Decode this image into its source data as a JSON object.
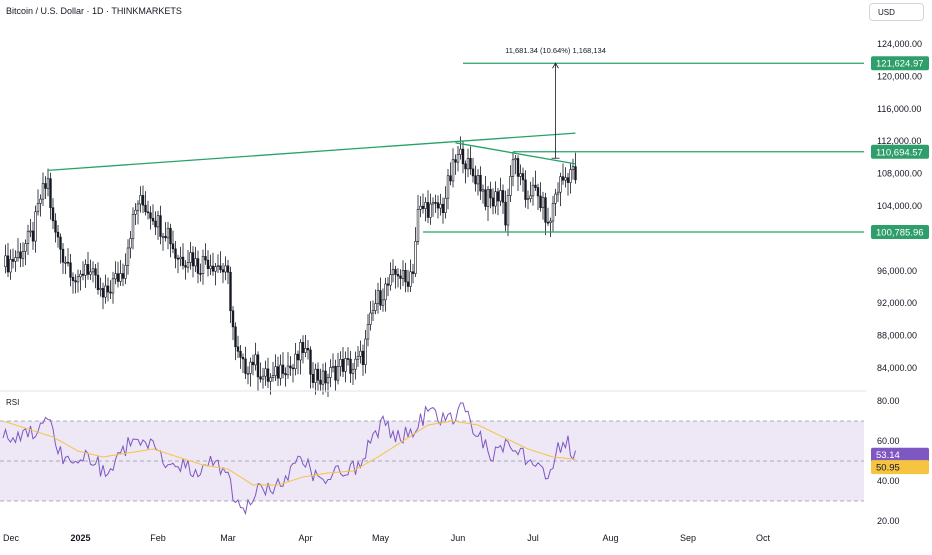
{
  "header": {
    "symbol_title": "Bitcoin / U.S. Dollar · 1D · THINKMARKETS",
    "currency_label": "USD"
  },
  "colors": {
    "trendline": "#26a269",
    "candle_up": "#ffffff",
    "candle_down": "#131722",
    "rsi_line": "#7e57c2",
    "rsi_ma": "#f5c542",
    "rsi_band": "#ede7f6",
    "price_label_bg": "#2e9e6b",
    "rsi_label_bg": "#7e57c2",
    "rsi_ma_label_bg": "#f5c542"
  },
  "chart_data": [
    {
      "type": "candlestick",
      "title": "Bitcoin / U.S. Dollar · 1D · THINKMARKETS",
      "y_axis_ticks": [
        "124,000.00",
        "120,000.00",
        "116,000.00",
        "112,000.00",
        "108,000.00",
        "104,000.00",
        "96,000.00",
        "92,000.00",
        "88,000.00",
        "84,000.00"
      ],
      "y_tick_values": [
        124000,
        120000,
        116000,
        112000,
        108000,
        104000,
        96000,
        92000,
        88000,
        84000
      ],
      "ylim": [
        81800,
        125500
      ],
      "x_axis_ticks": [
        "Dec",
        "2025",
        "Feb",
        "Mar",
        "Apr",
        "May",
        "Jun",
        "Jul",
        "Aug",
        "Sep",
        "Oct"
      ],
      "x_tick_days": [
        0,
        31,
        62,
        90,
        121,
        151,
        182,
        212,
        243,
        274,
        304
      ],
      "grid": false,
      "price_labels": [
        {
          "text": "121,624.97",
          "value": 121624.97
        },
        {
          "text": "110,694.57",
          "value": 110694.57
        },
        {
          "text": "100,785.96",
          "value": 100785.96
        }
      ],
      "measure": {
        "text": "11,681.34 (10.64%) 1,168,134",
        "from_value": 109900,
        "to_value": 121624.97,
        "day": 221
      },
      "close_path": [
        {
          "day": 0,
          "close": 96500
        },
        {
          "day": 6,
          "close": 98000
        },
        {
          "day": 12,
          "close": 100500
        },
        {
          "day": 15,
          "close": 105000
        },
        {
          "day": 18,
          "close": 107000
        },
        {
          "day": 20,
          "close": 101500
        },
        {
          "day": 24,
          "close": 98000
        },
        {
          "day": 27,
          "close": 96500
        },
        {
          "day": 30,
          "close": 94000
        },
        {
          "day": 33,
          "close": 97000
        },
        {
          "day": 36,
          "close": 95000
        },
        {
          "day": 40,
          "close": 92500
        },
        {
          "day": 44,
          "close": 94500
        },
        {
          "day": 48,
          "close": 96000
        },
        {
          "day": 51,
          "close": 101000
        },
        {
          "day": 54,
          "close": 104500
        },
        {
          "day": 57,
          "close": 104000
        },
        {
          "day": 60,
          "close": 103000
        },
        {
          "day": 63,
          "close": 101500
        },
        {
          "day": 66,
          "close": 101000
        },
        {
          "day": 69,
          "close": 98000
        },
        {
          "day": 72,
          "close": 97500
        },
        {
          "day": 75,
          "close": 98000
        },
        {
          "day": 78,
          "close": 96500
        },
        {
          "day": 81,
          "close": 97500
        },
        {
          "day": 84,
          "close": 97000
        },
        {
          "day": 87,
          "close": 96500
        },
        {
          "day": 90,
          "close": 95000
        },
        {
          "day": 93,
          "close": 86000
        },
        {
          "day": 96,
          "close": 84000
        },
        {
          "day": 100,
          "close": 85000
        },
        {
          "day": 104,
          "close": 83000
        },
        {
          "day": 108,
          "close": 82500
        },
        {
          "day": 112,
          "close": 84500
        },
        {
          "day": 116,
          "close": 84000
        },
        {
          "day": 120,
          "close": 86500
        },
        {
          "day": 124,
          "close": 83500
        },
        {
          "day": 128,
          "close": 82500
        },
        {
          "day": 132,
          "close": 83500
        },
        {
          "day": 136,
          "close": 84500
        },
        {
          "day": 140,
          "close": 84000
        },
        {
          "day": 144,
          "close": 85500
        },
        {
          "day": 146,
          "close": 88500
        },
        {
          "day": 149,
          "close": 92000
        },
        {
          "day": 152,
          "close": 93500
        },
        {
          "day": 155,
          "close": 94500
        },
        {
          "day": 158,
          "close": 96000
        },
        {
          "day": 161,
          "close": 94500
        },
        {
          "day": 164,
          "close": 96500
        },
        {
          "day": 166,
          "close": 103000
        },
        {
          "day": 169,
          "close": 104000
        },
        {
          "day": 172,
          "close": 103500
        },
        {
          "day": 176,
          "close": 104000
        },
        {
          "day": 178,
          "close": 106500
        },
        {
          "day": 181,
          "close": 109500
        },
        {
          "day": 184,
          "close": 110500
        },
        {
          "day": 187,
          "close": 108000
        },
        {
          "day": 190,
          "close": 107500
        },
        {
          "day": 193,
          "close": 105000
        },
        {
          "day": 196,
          "close": 104500
        },
        {
          "day": 199,
          "close": 106000
        },
        {
          "day": 201,
          "close": 102500
        },
        {
          "day": 203,
          "close": 108000
        },
        {
          "day": 205,
          "close": 109500
        },
        {
          "day": 207,
          "close": 107000
        },
        {
          "day": 209,
          "close": 105000
        },
        {
          "day": 211,
          "close": 106000
        },
        {
          "day": 213,
          "close": 105500
        },
        {
          "day": 215,
          "close": 104500
        },
        {
          "day": 217,
          "close": 103000
        },
        {
          "day": 218,
          "close": 101000
        },
        {
          "day": 219,
          "close": 102500
        },
        {
          "day": 221,
          "close": 105500
        },
        {
          "day": 223,
          "close": 107000
        },
        {
          "day": 225,
          "close": 107500
        },
        {
          "day": 227,
          "close": 108500
        },
        {
          "day": 229,
          "close": 107500
        }
      ],
      "annotations": {
        "upper_trendline": [
          {
            "day": 18,
            "value": 108400
          },
          {
            "day": 229,
            "value": 113000
          }
        ],
        "wedge_upper": [
          {
            "day": 181,
            "value": 111800
          },
          {
            "day": 229,
            "value": 109200
          }
        ],
        "resistance_right": {
          "start_day": 204,
          "value": 110694.57
        },
        "support": {
          "start_day": 168,
          "value": 100785.96
        },
        "target": {
          "start_day": 184,
          "value": 121624.97
        }
      }
    },
    {
      "type": "line",
      "title": "RSI",
      "y_axis_ticks": [
        "80.00",
        "60.00",
        "40.00",
        "20.00"
      ],
      "y_tick_values": [
        80,
        60,
        40,
        20
      ],
      "ylim": [
        18,
        82
      ],
      "band": [
        30,
        70
      ],
      "midline": 50,
      "value_labels": [
        {
          "text": "53.14",
          "value": 53.14
        },
        {
          "text": "50.95",
          "value": 50.95
        }
      ],
      "series": [
        {
          "role": "rsi",
          "points": [
            {
              "day": 0,
              "value": 66
            },
            {
              "day": 6,
              "value": 60
            },
            {
              "day": 12,
              "value": 64
            },
            {
              "day": 18,
              "value": 70
            },
            {
              "day": 22,
              "value": 55
            },
            {
              "day": 28,
              "value": 48
            },
            {
              "day": 34,
              "value": 54
            },
            {
              "day": 40,
              "value": 45
            },
            {
              "day": 46,
              "value": 52
            },
            {
              "day": 54,
              "value": 63
            },
            {
              "day": 60,
              "value": 56
            },
            {
              "day": 66,
              "value": 50
            },
            {
              "day": 72,
              "value": 48
            },
            {
              "day": 78,
              "value": 44
            },
            {
              "day": 84,
              "value": 50
            },
            {
              "day": 90,
              "value": 45
            },
            {
              "day": 93,
              "value": 28
            },
            {
              "day": 96,
              "value": 25
            },
            {
              "day": 102,
              "value": 38
            },
            {
              "day": 108,
              "value": 35
            },
            {
              "day": 114,
              "value": 44
            },
            {
              "day": 120,
              "value": 50
            },
            {
              "day": 126,
              "value": 40
            },
            {
              "day": 132,
              "value": 43
            },
            {
              "day": 138,
              "value": 45
            },
            {
              "day": 142,
              "value": 48
            },
            {
              "day": 146,
              "value": 58
            },
            {
              "day": 152,
              "value": 68
            },
            {
              "day": 158,
              "value": 62
            },
            {
              "day": 164,
              "value": 66
            },
            {
              "day": 170,
              "value": 75
            },
            {
              "day": 176,
              "value": 70
            },
            {
              "day": 181,
              "value": 72
            },
            {
              "day": 184,
              "value": 78
            },
            {
              "day": 190,
              "value": 62
            },
            {
              "day": 196,
              "value": 52
            },
            {
              "day": 203,
              "value": 60
            },
            {
              "day": 208,
              "value": 53
            },
            {
              "day": 214,
              "value": 50
            },
            {
              "day": 218,
              "value": 40
            },
            {
              "day": 222,
              "value": 55
            },
            {
              "day": 226,
              "value": 59
            },
            {
              "day": 229,
              "value": 53.14
            }
          ]
        },
        {
          "role": "rsi-ma",
          "points": [
            {
              "day": 0,
              "value": 70
            },
            {
              "day": 10,
              "value": 66
            },
            {
              "day": 20,
              "value": 62
            },
            {
              "day": 30,
              "value": 55
            },
            {
              "day": 40,
              "value": 52
            },
            {
              "day": 50,
              "value": 54
            },
            {
              "day": 60,
              "value": 56
            },
            {
              "day": 70,
              "value": 52
            },
            {
              "day": 80,
              "value": 48
            },
            {
              "day": 90,
              "value": 46
            },
            {
              "day": 100,
              "value": 38
            },
            {
              "day": 110,
              "value": 38
            },
            {
              "day": 120,
              "value": 42
            },
            {
              "day": 130,
              "value": 44
            },
            {
              "day": 140,
              "value": 45
            },
            {
              "day": 150,
              "value": 52
            },
            {
              "day": 160,
              "value": 60
            },
            {
              "day": 170,
              "value": 68
            },
            {
              "day": 180,
              "value": 70
            },
            {
              "day": 190,
              "value": 68
            },
            {
              "day": 200,
              "value": 62
            },
            {
              "day": 210,
              "value": 56
            },
            {
              "day": 220,
              "value": 52
            },
            {
              "day": 229,
              "value": 50.95
            }
          ]
        }
      ]
    }
  ]
}
